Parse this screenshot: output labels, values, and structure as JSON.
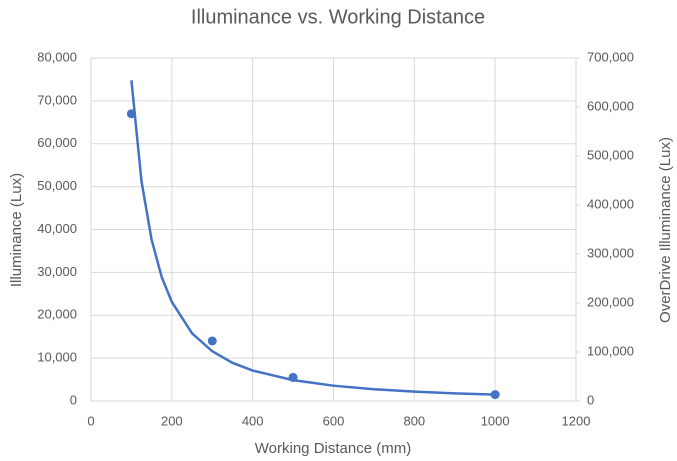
{
  "chart_data": {
    "type": "scatter",
    "title": "Illuminance vs. Working Distance",
    "xlabel": "Working Distance (mm)",
    "ylabel": "Illuminance (Lux)",
    "y2label": "OverDrive Illuminance (Lux)",
    "points": {
      "color": "#4472c4",
      "x": [
        100,
        300,
        500,
        1000
      ],
      "values": [
        67000,
        14000,
        5500,
        1500
      ]
    },
    "trendline": {
      "color": "#4472c4",
      "x": [
        100,
        125,
        150,
        175,
        200,
        250,
        300,
        350,
        400,
        500,
        600,
        700,
        800,
        900,
        1000
      ],
      "values": [
        74800,
        51200,
        37600,
        28900,
        23100,
        15800,
        11600,
        8900,
        7100,
        4870,
        3570,
        2750,
        2190,
        1790,
        1500
      ]
    },
    "xlim": [
      0,
      1200
    ],
    "xticks": [
      0,
      200,
      400,
      600,
      800,
      1000,
      1200
    ],
    "ylim": [
      0,
      80000
    ],
    "yticks": [
      0,
      {
        "value": 10000,
        "label": "10,000"
      },
      {
        "value": 20000,
        "label": "20,000"
      },
      {
        "value": 30000,
        "label": "30,000"
      },
      {
        "value": 40000,
        "label": "40,000"
      },
      {
        "value": 50000,
        "label": "50,000"
      },
      {
        "value": 60000,
        "label": "60,000"
      },
      {
        "value": 70000,
        "label": "70,000"
      },
      {
        "value": 80000,
        "label": "80,000"
      }
    ],
    "y2lim": [
      0,
      700000
    ],
    "y2ticks": [
      0,
      {
        "value": 100000,
        "label": "100,000"
      },
      {
        "value": 200000,
        "label": "200,000"
      },
      {
        "value": 300000,
        "label": "300,000"
      },
      {
        "value": 400000,
        "label": "400,000"
      },
      {
        "value": 500000,
        "label": "500,000"
      },
      {
        "value": 600000,
        "label": "600,000"
      },
      {
        "value": 700000,
        "label": "700,000"
      }
    ],
    "grid": true
  }
}
